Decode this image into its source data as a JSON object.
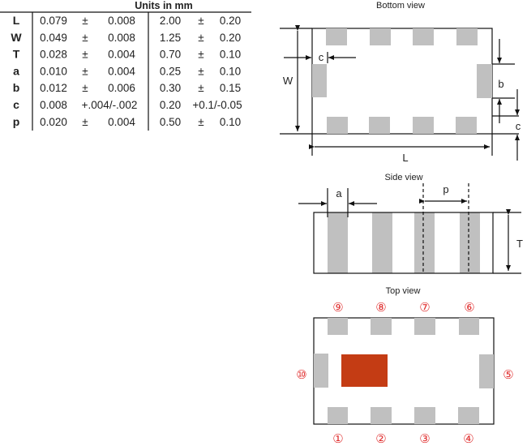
{
  "table": {
    "header": "Units in mm",
    "rows": [
      {
        "label": "L",
        "in_nom": "0.079",
        "in_pm": "±",
        "in_tol": "0.008",
        "mm_nom": "2.00",
        "mm_pm": "±",
        "mm_tol": "0.20"
      },
      {
        "label": "W",
        "in_nom": "0.049",
        "in_pm": "±",
        "in_tol": "0.008",
        "mm_nom": "1.25",
        "mm_pm": "±",
        "mm_tol": "0.20"
      },
      {
        "label": "T",
        "in_nom": "0.028",
        "in_pm": "±",
        "in_tol": "0.004",
        "mm_nom": "0.70",
        "mm_pm": "±",
        "mm_tol": "0.10"
      },
      {
        "label": "a",
        "in_nom": "0.010",
        "in_pm": "±",
        "in_tol": "0.004",
        "mm_nom": "0.25",
        "mm_pm": "±",
        "mm_tol": "0.10"
      },
      {
        "label": "b",
        "in_nom": "0.012",
        "in_pm": "±",
        "in_tol": "0.006",
        "mm_nom": "0.30",
        "mm_pm": "±",
        "mm_tol": "0.15"
      },
      {
        "label": "c",
        "in_nom": "0.008",
        "in_pm": "",
        "in_tol": "+.004/-.002",
        "mm_nom": "0.20",
        "mm_pm": "",
        "mm_tol": "+0.1/-0.05"
      },
      {
        "label": "p",
        "in_nom": "0.020",
        "in_pm": "±",
        "in_tol": "0.004",
        "mm_nom": "0.50",
        "mm_pm": "±",
        "mm_tol": "0.10"
      }
    ]
  },
  "bottom_view": {
    "title": "Bottom view",
    "dim_W": "W",
    "dim_L": "L",
    "dim_c_left": "c",
    "dim_b": "b",
    "dim_c_right": "c"
  },
  "side_view": {
    "title": "Side view",
    "dim_a": "a",
    "dim_p": "p",
    "dim_T": "T"
  },
  "top_view": {
    "title": "Top view",
    "pins_top": [
      "⑨",
      "⑧",
      "⑦",
      "⑥"
    ],
    "pins_bottom": [
      "①",
      "②",
      "③",
      "④"
    ],
    "pin_left": "⑩",
    "pin_right": "⑤"
  },
  "colors": {
    "pad": "#c0c0c0",
    "marker": "#c43c14",
    "pin_numbers": "#e03030"
  }
}
